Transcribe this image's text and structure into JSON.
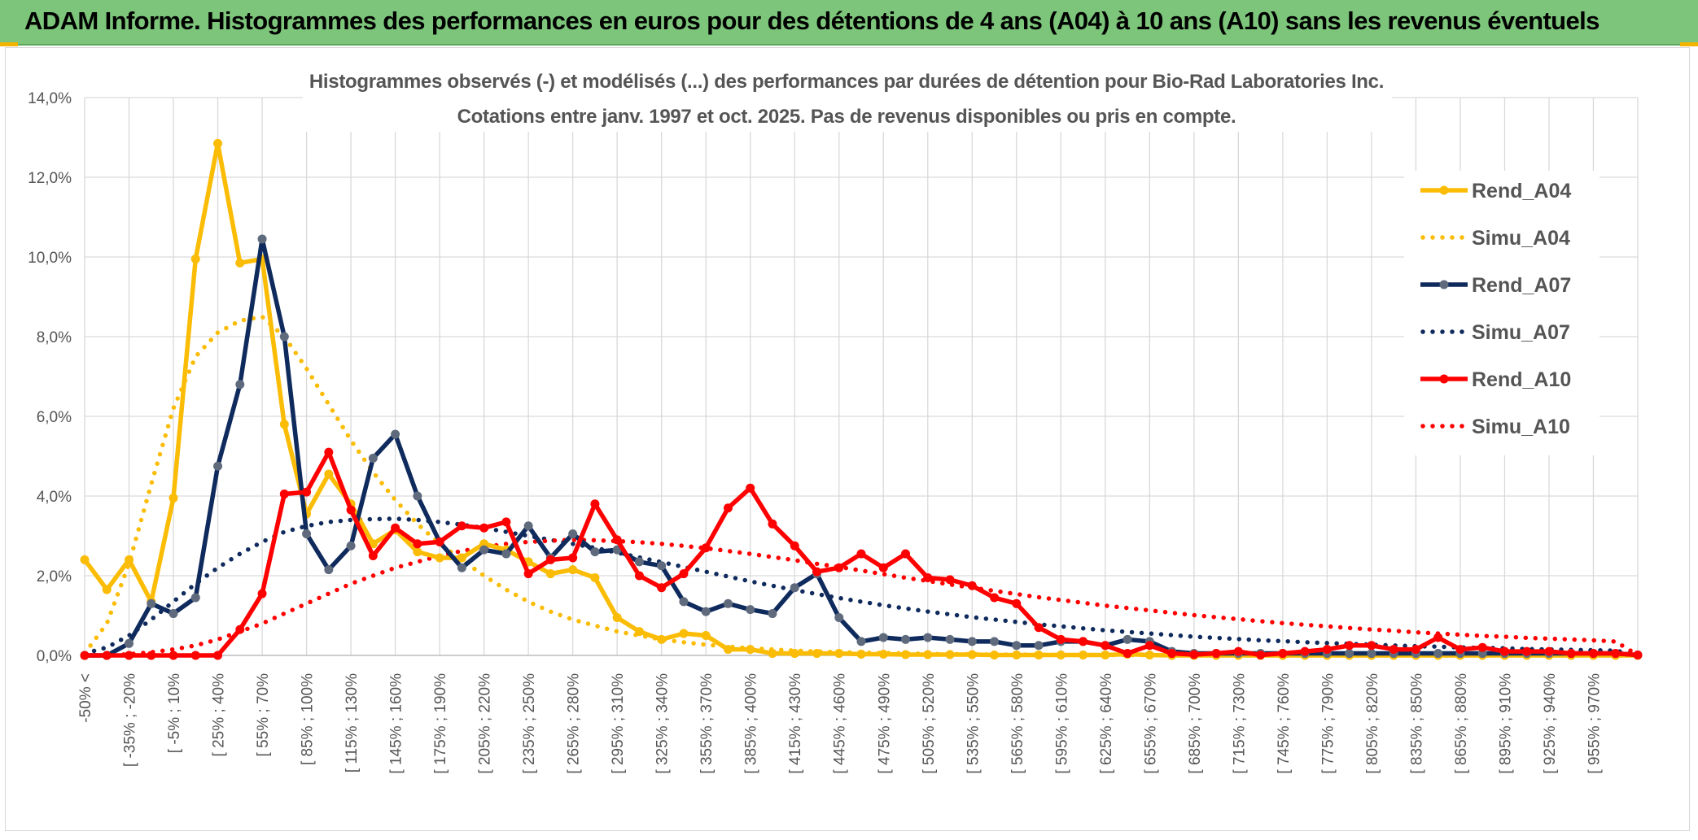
{
  "banner": {
    "title": "ADAM Informe. Histogrammes des performances en euros pour des détentions de 4 ans (A04) à 10 ans (A10) sans les revenus éventuels"
  },
  "colors": {
    "banner": "#7cc57a",
    "A04": "#fbbc05",
    "A07": "#0f2a5c",
    "A07_marker": "#5f6b7d",
    "A10": "#ff0000",
    "grid": "#d9d9d9"
  },
  "chart_data": {
    "type": "line",
    "title": "Histogrammes observés (-) et modélisés (...) des performances par durées de détention pour Bio-Rad Laboratories Inc.",
    "subtitle": "Cotations entre janv. 1997 et oct. 2025. Pas de revenus disponibles ou pris en compte.",
    "xlabel": "",
    "ylabel": "",
    "ylim": [
      0,
      0.14
    ],
    "yticks": [
      "0,0%",
      "2,0%",
      "4,0%",
      "6,0%",
      "8,0%",
      "10,0%",
      "12,0%",
      "14,0%"
    ],
    "grid": true,
    "legend_position": "right",
    "categories": [
      "-50% <",
      "[ -50% ; -35%",
      "[ -35% ; -20%",
      "[ -20% ; -5%",
      "[ -5% ; 10%",
      "[ 10% ; 25%",
      "[ 25% ; 40%",
      "[ 40% ; 55%",
      "[ 55% ; 70%",
      "[ 70% ; 85%",
      "[ 85% ; 100%",
      "[ 100% ; 115%",
      "[ 115% ; 130%",
      "[ 130% ; 145%",
      "[ 145% ; 160%",
      "[ 160% ; 175%",
      "[ 175% ; 190%",
      "[ 190% ; 205%",
      "[ 205% ; 220%",
      "[ 220% ; 235%",
      "[ 235% ; 250%",
      "[ 250% ; 265%",
      "[ 265% ; 280%",
      "[ 280% ; 295%",
      "[ 295% ; 310%",
      "[ 310% ; 325%",
      "[ 325% ; 340%",
      "[ 340% ; 355%",
      "[ 355% ; 370%",
      "[ 370% ; 385%",
      "[ 385% ; 400%",
      "[ 400% ; 415%",
      "[ 415% ; 430%",
      "[ 430% ; 445%",
      "[ 445% ; 460%",
      "[ 460% ; 475%",
      "[ 475% ; 490%",
      "[ 490% ; 505%",
      "[ 505% ; 520%",
      "[ 520% ; 535%",
      "[ 535% ; 550%",
      "[ 550% ; 565%",
      "[ 565% ; 580%",
      "[ 580% ; 595%",
      "[ 595% ; 610%",
      "[ 610% ; 625%",
      "[ 625% ; 640%",
      "[ 640% ; 655%",
      "[ 655% ; 670%",
      "[ 670% ; 685%",
      "[ 685% ; 700%",
      "[ 700% ; 715%",
      "[ 715% ; 730%",
      "[ 730% ; 745%",
      "[ 745% ; 760%",
      "[ 760% ; 775%",
      "[ 775% ; 790%",
      "[ 790% ; 805%",
      "[ 805% ; 820%",
      "[ 820% ; 835%",
      "[ 835% ; 850%",
      "[ 850% ; 865%",
      "[ 865% ; 880%",
      "[ 880% ; 895%",
      "[ 895% ; 910%",
      "[ 910% ; 925%",
      "[ 925% ; 940%",
      "[ 940% ; 955%",
      "[ 955% ; 970%",
      "[ 970% ; 985%",
      "985% <"
    ],
    "visible_tick_labels": [
      "-50% <",
      "[ -35% ; -20%",
      "[ -5% ; 10%",
      "[ 25% ; 40%",
      "[ 55% ; 70%",
      "[ 85% ; 100%",
      "[ 115% ; 130%",
      "[ 145% ; 160%",
      "[ 175% ; 190%",
      "[ 205% ; 220%",
      "[ 235% ; 250%",
      "[ 265% ; 280%",
      "[ 295% ; 310%",
      "[ 325% ; 340%",
      "[ 355% ; 370%",
      "[ 385% ; 400%",
      "[ 415% ; 430%",
      "[ 445% ; 460%",
      "[ 475% ; 490%",
      "[ 505% ; 520%",
      "[ 535% ; 550%",
      "[ 565% ; 580%",
      "[ 595% ; 610%",
      "[ 625% ; 640%",
      "[ 655% ; 670%",
      "[ 685% ; 700%",
      "[ 715% ; 730%",
      "[ 745% ; 760%",
      "[ 775% ; 790%",
      "[ 805% ; 820%",
      "[ 835% ; 850%",
      "[ 865% ; 880%",
      "[ 895% ; 910%",
      "[ 925% ; 940%",
      "[ 955% ; 970%"
    ],
    "series": [
      {
        "name": "Rend_A04",
        "style": "solid",
        "color": "#fbbc05",
        "values": [
          0.024,
          0.0165,
          0.024,
          0.0135,
          0.0395,
          0.0995,
          0.1285,
          0.0985,
          0.0995,
          0.058,
          0.0355,
          0.0455,
          0.038,
          0.028,
          0.0315,
          0.026,
          0.0245,
          0.0245,
          0.028,
          0.0265,
          0.0235,
          0.0205,
          0.0215,
          0.0195,
          0.0095,
          0.006,
          0.004,
          0.0055,
          0.005,
          0.0015,
          0.0015,
          0.0005,
          0.0005,
          0.0005,
          0.0005,
          0.0003,
          0.0003,
          0.0002,
          0.0002,
          0.0002,
          0.0002,
          0.0001,
          0.0001,
          0.0001,
          0.0001,
          0.0001,
          0.0001,
          0.0003,
          0.0001,
          0,
          0,
          0,
          0,
          0,
          0,
          0,
          0,
          0,
          0,
          0,
          0,
          0,
          0,
          0,
          0,
          0,
          0,
          0,
          0,
          0,
          0
        ]
      },
      {
        "name": "Simu_A04",
        "style": "dotted",
        "color": "#fbbc05",
        "values": [
          0.0005,
          0.008,
          0.023,
          0.043,
          0.062,
          0.075,
          0.081,
          0.084,
          0.085,
          0.08,
          0.072,
          0.063,
          0.054,
          0.046,
          0.039,
          0.033,
          0.028,
          0.024,
          0.02,
          0.0165,
          0.0135,
          0.011,
          0.009,
          0.0075,
          0.006,
          0.005,
          0.004,
          0.0033,
          0.0027,
          0.0022,
          0.0018,
          0.0015,
          0.0012,
          0.001,
          0.0008,
          0.0007,
          0.0006,
          0.0005,
          0.0004,
          0.0003,
          0.0003,
          0.0002,
          0.0002,
          0.0002,
          0.0001,
          0.0001,
          0.0001,
          0.0001,
          0.0001,
          0,
          0,
          0,
          0,
          0,
          0,
          0,
          0,
          0,
          0,
          0,
          0,
          0,
          0,
          0,
          0,
          0,
          0,
          0,
          0,
          0,
          0
        ]
      },
      {
        "name": "Rend_A07",
        "style": "solid",
        "color": "#0f2a5c",
        "values": [
          0,
          0,
          0.003,
          0.013,
          0.0105,
          0.0145,
          0.0475,
          0.068,
          0.1045,
          0.08,
          0.0305,
          0.0215,
          0.0275,
          0.0495,
          0.0555,
          0.04,
          0.0285,
          0.022,
          0.0265,
          0.0255,
          0.0325,
          0.0245,
          0.0305,
          0.026,
          0.0265,
          0.0235,
          0.0225,
          0.0135,
          0.011,
          0.013,
          0.0115,
          0.0105,
          0.017,
          0.0205,
          0.0095,
          0.0035,
          0.0045,
          0.004,
          0.0045,
          0.004,
          0.0035,
          0.0035,
          0.0025,
          0.0025,
          0.0035,
          0.0035,
          0.0025,
          0.004,
          0.0035,
          0.001,
          0.0005,
          0.0005,
          0.0005,
          0.0005,
          0.0005,
          0.0005,
          0.0005,
          0.0005,
          0.0005,
          0.0005,
          0.0005,
          0.0005,
          0.0005,
          0.0005,
          0.0005,
          0.0005,
          0.0005,
          0.0005,
          0.0005,
          0.0005,
          0.0001
        ]
      },
      {
        "name": "Simu_A07",
        "style": "dotted",
        "color": "#0f2a5c",
        "values": [
          0.0005,
          0.002,
          0.005,
          0.009,
          0.0135,
          0.018,
          0.022,
          0.0255,
          0.0285,
          0.031,
          0.0325,
          0.0335,
          0.034,
          0.0342,
          0.0343,
          0.034,
          0.0335,
          0.0328,
          0.032,
          0.031,
          0.03,
          0.029,
          0.028,
          0.027,
          0.0258,
          0.0246,
          0.0234,
          0.0222,
          0.021,
          0.0198,
          0.0186,
          0.0175,
          0.0164,
          0.0154,
          0.0144,
          0.0135,
          0.0126,
          0.0118,
          0.011,
          0.0103,
          0.0096,
          0.009,
          0.0084,
          0.0078,
          0.0073,
          0.0068,
          0.0063,
          0.0059,
          0.0055,
          0.0051,
          0.0047,
          0.0044,
          0.0041,
          0.0038,
          0.0036,
          0.0033,
          0.0031,
          0.0029,
          0.0027,
          0.0025,
          0.0023,
          0.0022,
          0.002,
          0.0019,
          0.0018,
          0.0016,
          0.0015,
          0.0014,
          0.0013,
          0.0012,
          0.0001
        ]
      },
      {
        "name": "Rend_A10",
        "style": "solid",
        "color": "#ff0000",
        "values": [
          0,
          0,
          0,
          0,
          0,
          0,
          0,
          0.0065,
          0.0155,
          0.0405,
          0.041,
          0.051,
          0.0365,
          0.025,
          0.032,
          0.028,
          0.0285,
          0.0325,
          0.032,
          0.0335,
          0.0205,
          0.024,
          0.0245,
          0.038,
          0.029,
          0.02,
          0.017,
          0.0205,
          0.027,
          0.037,
          0.042,
          0.033,
          0.0275,
          0.021,
          0.022,
          0.0255,
          0.022,
          0.0255,
          0.0195,
          0.019,
          0.0175,
          0.0145,
          0.013,
          0.007,
          0.004,
          0.0035,
          0.0025,
          0.0005,
          0.0025,
          0.0005,
          0.0002,
          0.0005,
          0.001,
          0.0001,
          0.0005,
          0.001,
          0.0015,
          0.0025,
          0.0025,
          0.0015,
          0.0015,
          0.0045,
          0.0015,
          0.002,
          0.001,
          0.001,
          0.001,
          0.0005,
          0.0005,
          0.0005,
          0.0001
        ]
      },
      {
        "name": "Simu_A10",
        "style": "dotted",
        "color": "#ff0000",
        "values": [
          0,
          0,
          0.0003,
          0.0008,
          0.0015,
          0.0025,
          0.004,
          0.006,
          0.008,
          0.0105,
          0.013,
          0.0155,
          0.018,
          0.02,
          0.022,
          0.0235,
          0.025,
          0.0262,
          0.0272,
          0.028,
          0.0285,
          0.0288,
          0.029,
          0.0289,
          0.0287,
          0.0284,
          0.028,
          0.0275,
          0.0269,
          0.0262,
          0.0255,
          0.0247,
          0.0239,
          0.023,
          0.0222,
          0.0213,
          0.0204,
          0.0195,
          0.0187,
          0.0178,
          0.017,
          0.0162,
          0.0154,
          0.0146,
          0.0139,
          0.0132,
          0.0125,
          0.0119,
          0.0113,
          0.0107,
          0.0101,
          0.0096,
          0.0091,
          0.0086,
          0.0081,
          0.0077,
          0.0073,
          0.0069,
          0.0065,
          0.0062,
          0.0058,
          0.0055,
          0.0052,
          0.0049,
          0.0047,
          0.0044,
          0.0042,
          0.004,
          0.0038,
          0.0035,
          0.0001
        ]
      }
    ]
  }
}
